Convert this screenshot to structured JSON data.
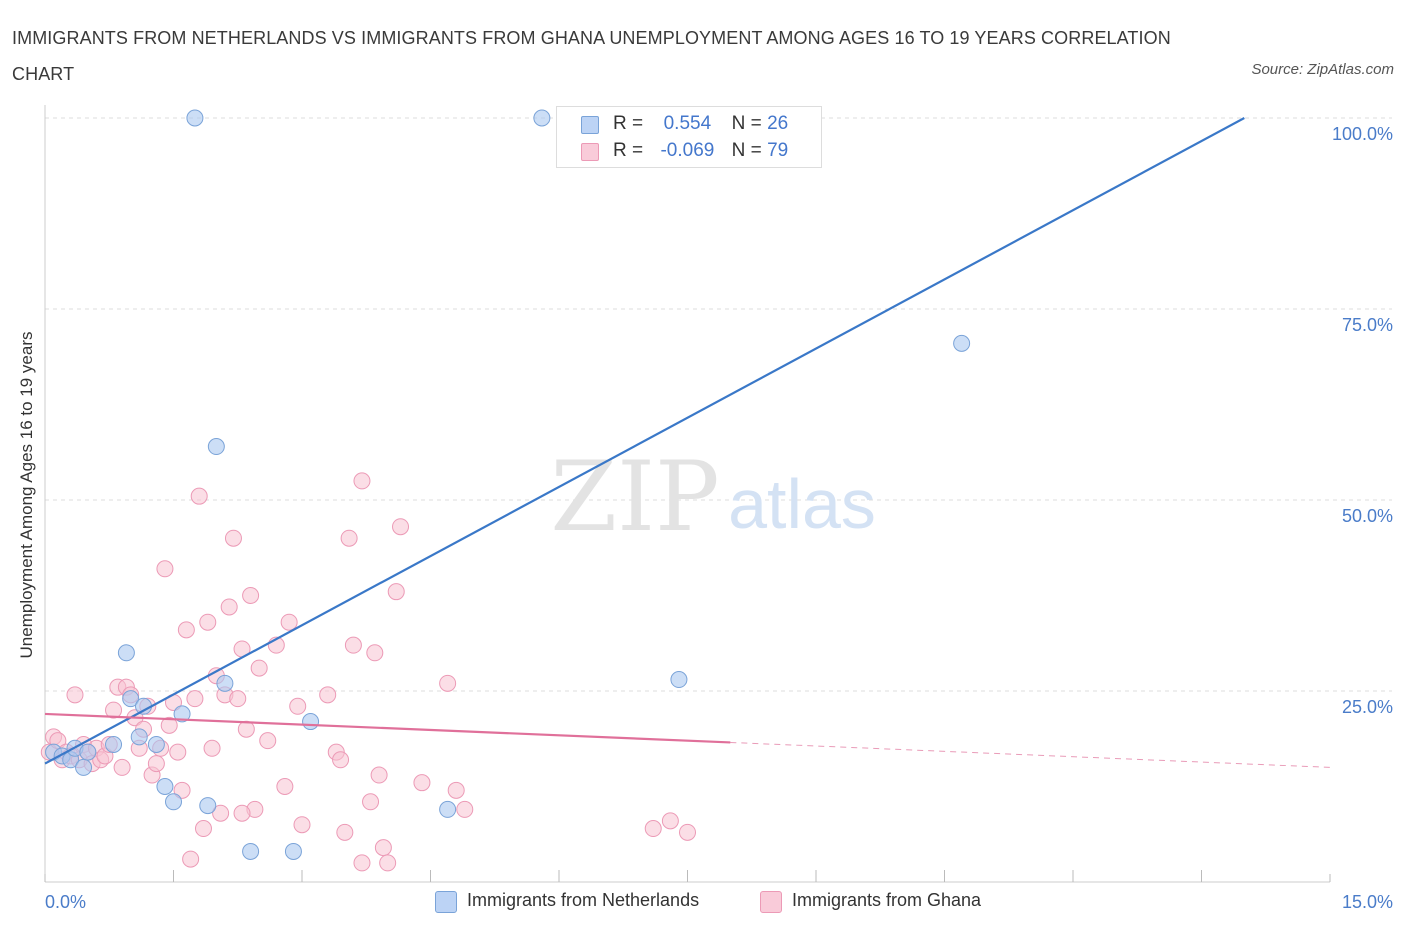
{
  "header": {
    "title": "IMMIGRANTS FROM NETHERLANDS VS IMMIGRANTS FROM GHANA UNEMPLOYMENT AMONG AGES 16 TO 19 YEARS CORRELATION CHART",
    "source": "Source: ZipAtlas.com"
  },
  "stats": {
    "rows": [
      {
        "r_label": "R =",
        "r_value": "0.554",
        "n_label": "N =",
        "n_value": "26"
      },
      {
        "r_label": "R =",
        "r_value": "-0.069",
        "n_label": "N =",
        "n_value": "79"
      }
    ]
  },
  "legend": {
    "items": [
      {
        "label": "Immigrants from Netherlands"
      },
      {
        "label": "Immigrants from Ghana"
      }
    ]
  },
  "watermark": {
    "zip": "ZIP",
    "atlas": "atlas"
  },
  "colors": {
    "netherlands_fill": "#aac8f0",
    "netherlands_stroke": "#7aa3d8",
    "netherlands_line": "#3a78c8",
    "ghana_fill": "#f7c2d2",
    "ghana_stroke": "#ec9ab6",
    "ghana_line": "#e0709a",
    "axis_text": "#4a7cc9",
    "grid": "#dddddd"
  },
  "chart_data": {
    "type": "scatter",
    "title": "IMMIGRANTS FROM NETHERLANDS VS IMMIGRANTS FROM GHANA UNEMPLOYMENT AMONG AGES 16 TO 19 YEARS CORRELATION CHART",
    "xlabel": "",
    "ylabel": "Unemployment Among Ages 16 to 19 years",
    "xlim": [
      0,
      15
    ],
    "ylim": [
      0,
      100
    ],
    "x_tick_labels": [
      "0.0%",
      "15.0%"
    ],
    "y_ticks": [
      25,
      50,
      75,
      100
    ],
    "y_tick_labels": [
      "25.0%",
      "50.0%",
      "75.0%",
      "100.0%"
    ],
    "grid": true,
    "legend_position": "bottom",
    "series": [
      {
        "name": "Immigrants from Netherlands",
        "r": 0.554,
        "n": 26,
        "trend": {
          "x": [
            0.0,
            14.0
          ],
          "y": [
            15.5,
            100.0
          ],
          "dashed_from_x": null
        },
        "points": [
          [
            0.1,
            17.0
          ],
          [
            0.2,
            16.5
          ],
          [
            0.3,
            16.0
          ],
          [
            0.35,
            17.5
          ],
          [
            0.45,
            15.0
          ],
          [
            0.5,
            17.0
          ],
          [
            0.8,
            18.0
          ],
          [
            0.95,
            30.0
          ],
          [
            1.0,
            24.0
          ],
          [
            1.1,
            19.0
          ],
          [
            1.15,
            23.0
          ],
          [
            1.3,
            18.0
          ],
          [
            1.4,
            12.5
          ],
          [
            1.5,
            10.5
          ],
          [
            1.6,
            22.0
          ],
          [
            1.75,
            100.0
          ],
          [
            1.9,
            10.0
          ],
          [
            2.0,
            57.0
          ],
          [
            2.1,
            26.0
          ],
          [
            2.4,
            4.0
          ],
          [
            2.9,
            4.0
          ],
          [
            3.1,
            21.0
          ],
          [
            4.7,
            9.5
          ],
          [
            5.8,
            100.0
          ],
          [
            7.4,
            26.5
          ],
          [
            10.7,
            70.5
          ]
        ]
      },
      {
        "name": "Immigrants from Ghana",
        "r": -0.069,
        "n": 79,
        "trend": {
          "x": [
            0.0,
            15.0
          ],
          "y": [
            22.0,
            15.0
          ],
          "dashed_from_x": 8.0
        },
        "points": [
          [
            0.05,
            17.0
          ],
          [
            0.1,
            19.0
          ],
          [
            0.15,
            18.5
          ],
          [
            0.2,
            16.0
          ],
          [
            0.25,
            17.0
          ],
          [
            0.3,
            16.5
          ],
          [
            0.35,
            24.5
          ],
          [
            0.4,
            16.0
          ],
          [
            0.45,
            18.0
          ],
          [
            0.5,
            17.0
          ],
          [
            0.55,
            15.5
          ],
          [
            0.6,
            17.5
          ],
          [
            0.65,
            16.0
          ],
          [
            0.7,
            16.5
          ],
          [
            0.75,
            18.0
          ],
          [
            0.8,
            22.5
          ],
          [
            0.85,
            25.5
          ],
          [
            0.9,
            15.0
          ],
          [
            0.95,
            25.5
          ],
          [
            1.0,
            24.5
          ],
          [
            1.05,
            21.5
          ],
          [
            1.1,
            17.5
          ],
          [
            1.15,
            20.0
          ],
          [
            1.2,
            23.0
          ],
          [
            1.25,
            14.0
          ],
          [
            1.3,
            15.5
          ],
          [
            1.35,
            17.5
          ],
          [
            1.4,
            41.0
          ],
          [
            1.45,
            20.5
          ],
          [
            1.5,
            23.5
          ],
          [
            1.55,
            17.0
          ],
          [
            1.6,
            12.0
          ],
          [
            1.65,
            33.0
          ],
          [
            1.7,
            3.0
          ],
          [
            1.75,
            24.0
          ],
          [
            1.8,
            50.5
          ],
          [
            1.85,
            7.0
          ],
          [
            1.9,
            34.0
          ],
          [
            1.95,
            17.5
          ],
          [
            2.0,
            27.0
          ],
          [
            2.05,
            9.0
          ],
          [
            2.1,
            24.5
          ],
          [
            2.15,
            36.0
          ],
          [
            2.2,
            45.0
          ],
          [
            2.25,
            24.0
          ],
          [
            2.3,
            30.5
          ],
          [
            2.35,
            20.0
          ],
          [
            2.4,
            37.5
          ],
          [
            2.45,
            9.5
          ],
          [
            2.5,
            28.0
          ],
          [
            2.6,
            18.5
          ],
          [
            2.7,
            31.0
          ],
          [
            2.8,
            12.5
          ],
          [
            2.85,
            34.0
          ],
          [
            2.95,
            23.0
          ],
          [
            3.0,
            7.5
          ],
          [
            3.3,
            24.5
          ],
          [
            3.4,
            17.0
          ],
          [
            3.45,
            16.0
          ],
          [
            3.5,
            6.5
          ],
          [
            3.55,
            45.0
          ],
          [
            3.6,
            31.0
          ],
          [
            3.7,
            52.5
          ],
          [
            3.8,
            10.5
          ],
          [
            3.85,
            30.0
          ],
          [
            3.9,
            14.0
          ],
          [
            3.95,
            4.5
          ],
          [
            4.0,
            2.5
          ],
          [
            4.1,
            38.0
          ],
          [
            4.15,
            46.5
          ],
          [
            4.4,
            13.0
          ],
          [
            4.7,
            26.0
          ],
          [
            4.8,
            12.0
          ],
          [
            4.9,
            9.5
          ],
          [
            7.1,
            7.0
          ],
          [
            7.3,
            8.0
          ],
          [
            7.5,
            6.5
          ],
          [
            3.7,
            2.5
          ],
          [
            2.3,
            9.0
          ]
        ]
      }
    ]
  }
}
